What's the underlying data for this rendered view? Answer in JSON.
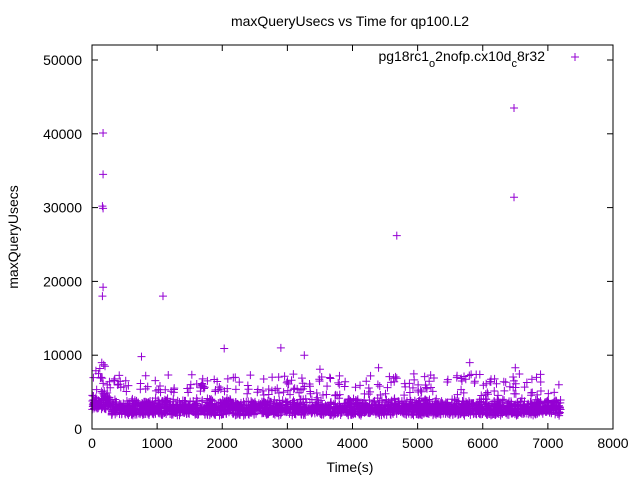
{
  "chart_data": {
    "type": "scatter",
    "title": "maxQueryUsecs vs Time for qp100.L2",
    "xlabel": "Time(s)",
    "ylabel": "maxQueryUsecs",
    "xlim": [
      0,
      8000
    ],
    "ylim": [
      0,
      52000
    ],
    "xticks": [
      0,
      1000,
      2000,
      3000,
      4000,
      5000,
      6000,
      7000,
      8000
    ],
    "yticks": [
      0,
      10000,
      20000,
      30000,
      40000,
      50000
    ],
    "grid": false,
    "legend_position": "top-right",
    "series": [
      {
        "name": "pg18rc1_o2nofp.cx10d_c8r32",
        "legend_parts": [
          {
            "text": "pg18rc1",
            "sub": false
          },
          {
            "text": "o",
            "sub": true
          },
          {
            "text": "2nofp.cx10d",
            "sub": false
          },
          {
            "text": "c",
            "sub": true
          },
          {
            "text": "8r32",
            "sub": false
          }
        ],
        "color": "#9400d3",
        "marker": "+",
        "outliers": [
          [
            170,
            40100
          ],
          [
            170,
            34500
          ],
          [
            160,
            30200
          ],
          [
            170,
            29900
          ],
          [
            170,
            19200
          ],
          [
            160,
            18000
          ],
          [
            1090,
            18000
          ],
          [
            4680,
            26200
          ],
          [
            6480,
            43500
          ],
          [
            6480,
            31400
          ],
          [
            2030,
            10900
          ],
          [
            2900,
            11000
          ],
          [
            3260,
            10000
          ],
          [
            760,
            9800
          ],
          [
            5800,
            9000
          ],
          [
            6500,
            8300
          ],
          [
            150,
            9000
          ],
          [
            180,
            8700
          ],
          [
            120,
            8200
          ],
          [
            60,
            7900
          ],
          [
            200,
            8500
          ],
          [
            3500,
            8100
          ],
          [
            4400,
            8300
          ],
          [
            100,
            7500
          ],
          [
            140,
            7000
          ],
          [
            1700,
            6800
          ],
          [
            2200,
            7000
          ],
          [
            3800,
            7200
          ],
          [
            5200,
            7300
          ]
        ],
        "sparse_band": {
          "x_range": [
            0,
            7200
          ],
          "y_range": [
            4500,
            7500
          ],
          "count": 220
        },
        "dense_band": {
          "x_range": [
            0,
            7200
          ],
          "y_range": [
            1800,
            4300
          ],
          "count": 2200
        }
      }
    ]
  }
}
